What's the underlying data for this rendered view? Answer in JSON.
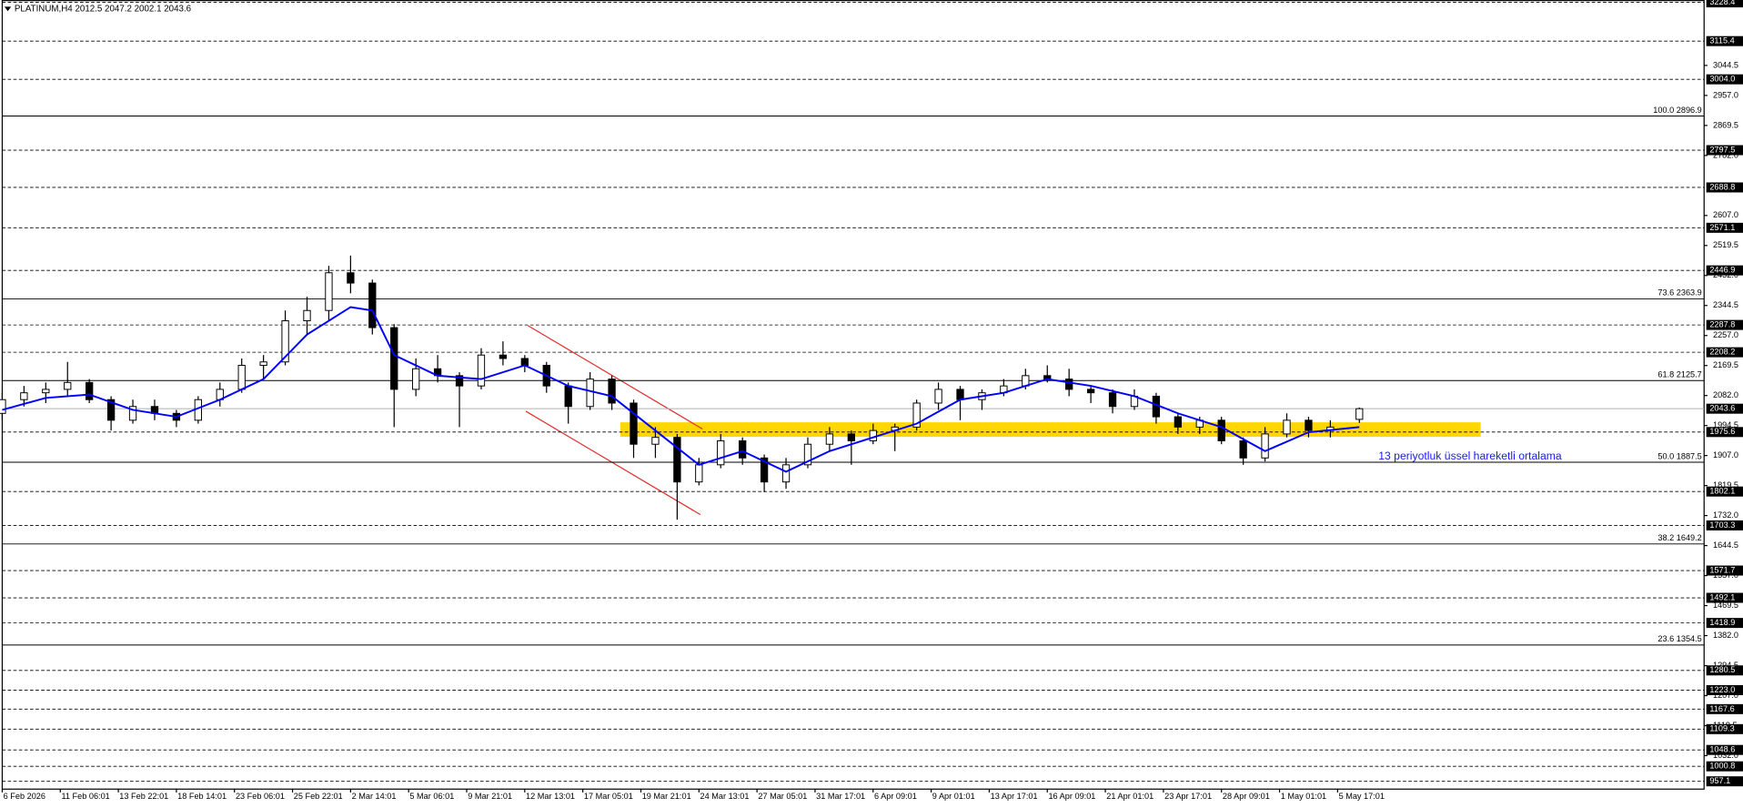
{
  "chart_data": {
    "type": "candlestick",
    "title": "PLATINUM,H4  2012.5 2047.2 2002.1 2043.6",
    "x": [
      0,
      6,
      12,
      18,
      24,
      30,
      36,
      42,
      48,
      54,
      60,
      66,
      72,
      78,
      84,
      90,
      96,
      102,
      108,
      114,
      120,
      126,
      132,
      138,
      144,
      150,
      156,
      162,
      168,
      174,
      180,
      186,
      192,
      198,
      204,
      210,
      216,
      222,
      228,
      234,
      240,
      246,
      252,
      258,
      264,
      270,
      276,
      282,
      288,
      294,
      300,
      306,
      312,
      318,
      324,
      330,
      336,
      342,
      348,
      354,
      360,
      366,
      374
    ],
    "open": [
      2030,
      2070,
      2090,
      2100,
      2120,
      2070,
      2010,
      2050,
      2030,
      2010,
      2070,
      2100,
      2170,
      2180,
      2300,
      2330,
      2440,
      2410,
      2280,
      2100,
      2160,
      2140,
      2110,
      2200,
      2190,
      2170,
      2110,
      2050,
      2130,
      2060,
      1940,
      1960,
      1830,
      1880,
      1950,
      1900,
      1830,
      1880,
      1940,
      1970,
      1950,
      1980,
      1990,
      2060,
      2100,
      2070,
      2090,
      2110,
      2140,
      2130,
      2100,
      2090,
      2050,
      2080,
      2020,
      1990,
      2010,
      1950,
      1900,
      1970,
      2010,
      1980,
      2012.5
    ],
    "high": [
      2090,
      2110,
      2120,
      2180,
      2130,
      2080,
      2070,
      2070,
      2040,
      2080,
      2120,
      2190,
      2200,
      2330,
      2370,
      2460,
      2490,
      2420,
      2290,
      2190,
      2200,
      2150,
      2220,
      2240,
      2200,
      2180,
      2120,
      2150,
      2140,
      2070,
      1990,
      1970,
      1900,
      1970,
      1960,
      1910,
      1900,
      1960,
      1990,
      1980,
      2000,
      2000,
      2070,
      2120,
      2110,
      2100,
      2130,
      2160,
      2170,
      2160,
      2110,
      2100,
      2100,
      2090,
      2030,
      2020,
      2020,
      1960,
      1990,
      2030,
      2020,
      2010,
      2047.2
    ],
    "low": [
      2010,
      2050,
      2060,
      2080,
      2060,
      1980,
      2000,
      2010,
      1990,
      2000,
      2050,
      2090,
      2130,
      2170,
      2260,
      2300,
      2380,
      2260,
      1990,
      2080,
      2120,
      1990,
      2100,
      2170,
      2150,
      2090,
      2000,
      2040,
      2040,
      1900,
      1900,
      1720,
      1820,
      1870,
      1880,
      1800,
      1810,
      1870,
      1920,
      1880,
      1940,
      1920,
      1980,
      2040,
      2010,
      2040,
      2080,
      2100,
      2120,
      2080,
      2060,
      2030,
      2040,
      2000,
      1970,
      1970,
      1940,
      1880,
      1890,
      1960,
      1960,
      1960,
      2002.1
    ],
    "close": [
      2070,
      2090,
      2100,
      2120,
      2070,
      2010,
      2050,
      2030,
      2010,
      2070,
      2100,
      2170,
      2180,
      2300,
      2330,
      2440,
      2410,
      2280,
      2100,
      2160,
      2140,
      2110,
      2200,
      2190,
      2170,
      2110,
      2050,
      2130,
      2060,
      1940,
      1960,
      1830,
      1880,
      1950,
      1900,
      1830,
      1880,
      1940,
      1970,
      1950,
      1980,
      1990,
      2060,
      2100,
      2070,
      2090,
      2110,
      2140,
      2130,
      2100,
      2090,
      2050,
      2080,
      2020,
      1990,
      2010,
      1950,
      1900,
      1970,
      2010,
      1980,
      1990,
      2043.6
    ],
    "ema": {
      "name": "13 periyotluk üssel hareketli ortalama",
      "color": "#0000ff",
      "x": [
        0,
        12,
        24,
        36,
        48,
        60,
        72,
        84,
        96,
        102,
        108,
        120,
        132,
        144,
        156,
        168,
        180,
        192,
        204,
        216,
        228,
        240,
        252,
        264,
        276,
        288,
        300,
        312,
        324,
        336,
        348,
        360,
        374
      ],
      "values": [
        2040,
        2075,
        2085,
        2040,
        2020,
        2070,
        2130,
        2260,
        2340,
        2330,
        2200,
        2140,
        2130,
        2170,
        2110,
        2080,
        1980,
        1880,
        1920,
        1860,
        1920,
        1960,
        2000,
        2070,
        2090,
        2130,
        2110,
        2080,
        2030,
        1990,
        1920,
        1975,
        1990
      ]
    },
    "last_price": 2043.6,
    "xlim": [
      0,
      469
    ],
    "xticks": [
      {
        "value": 0,
        "label": "6 Feb 2026"
      },
      {
        "value": 16,
        "label": "11 Feb 06:01"
      },
      {
        "value": 32,
        "label": "13 Feb 22:01"
      },
      {
        "value": 48,
        "label": "18 Feb 14:01"
      },
      {
        "value": 64,
        "label": "23 Feb 06:01"
      },
      {
        "value": 80,
        "label": "25 Feb 22:01"
      },
      {
        "value": 96,
        "label": "2 Mar 14:01"
      },
      {
        "value": 112,
        "label": "5 Mar 06:01"
      },
      {
        "value": 128,
        "label": "9 Mar 21:01"
      },
      {
        "value": 144,
        "label": "12 Mar 13:01"
      },
      {
        "value": 160,
        "label": "17 Mar 05:01"
      },
      {
        "value": 176,
        "label": "19 Mar 21:01"
      },
      {
        "value": 192,
        "label": "24 Mar 13:01"
      },
      {
        "value": 208,
        "label": "27 Mar 05:01"
      },
      {
        "value": 224,
        "label": "31 Mar 17:01"
      },
      {
        "value": 240,
        "label": "6 Apr 09:01"
      },
      {
        "value": 256,
        "label": "9 Apr 01:01"
      },
      {
        "value": 272,
        "label": "13 Apr 17:01"
      },
      {
        "value": 288,
        "label": "16 Apr 09:01"
      },
      {
        "value": 304,
        "label": "21 Apr 01:01"
      },
      {
        "value": 320,
        "label": "23 Apr 17:01"
      },
      {
        "value": 336,
        "label": "28 Apr 09:01"
      },
      {
        "value": 352,
        "label": "1 May 01:01"
      },
      {
        "value": 368,
        "label": "5 May 17:01"
      }
    ],
    "ylim": [
      934.4,
      3235.3
    ],
    "yticks": [
      3044.5,
      {
        "value": 2957,
        "label": "2957.0"
      },
      2869.5,
      {
        "value": 2782,
        "label": "2782.0"
      },
      {
        "value": 2607,
        "label": "2607.0"
      },
      2519.5,
      {
        "value": 2432,
        "label": "2432.0"
      },
      2344.5,
      {
        "value": 2257,
        "label": "2257.0"
      },
      2169.5,
      {
        "value": 2082,
        "label": "2082.0"
      },
      1994.5,
      {
        "value": 1907,
        "label": "1907.0"
      },
      1819.5,
      {
        "value": 1732,
        "label": "1732.0"
      },
      1644.5,
      {
        "value": 1557,
        "label": "1557.0"
      },
      1469.5,
      {
        "value": 1382,
        "label": "1382.0"
      },
      1294.5,
      {
        "value": 1207,
        "label": "1207.0"
      },
      1119.5,
      {
        "value": 1032,
        "label": "1032.0"
      }
    ],
    "levels": [
      3228.4,
      3115.4,
      {
        "value": 3004,
        "label": "3004.0"
      },
      2797.5,
      2688.8,
      2571.1,
      2446.9,
      2287.8,
      2208.2,
      1975.6,
      1802.1,
      1703.3,
      1571.7,
      1492.1,
      1418.9,
      1280.5,
      {
        "value": 1223,
        "label": "1223.0"
      },
      1167.6,
      1109.3,
      1048.6,
      1000.8,
      957.1
    ],
    "fib_levels": [
      {
        "value": 2896.9,
        "label": "100.0 2896.9"
      },
      {
        "value": 2363.9,
        "label": "73.6 2363.9"
      },
      {
        "value": 2125.7,
        "label": "61.8 2125.7"
      },
      {
        "value": 1887.5,
        "label": "50.0 1887.5"
      },
      {
        "value": 1649.2,
        "label": "38.2 1649.2"
      },
      {
        "value": 1354.5,
        "label": "23.6 1354.5"
      }
    ]
  }
}
